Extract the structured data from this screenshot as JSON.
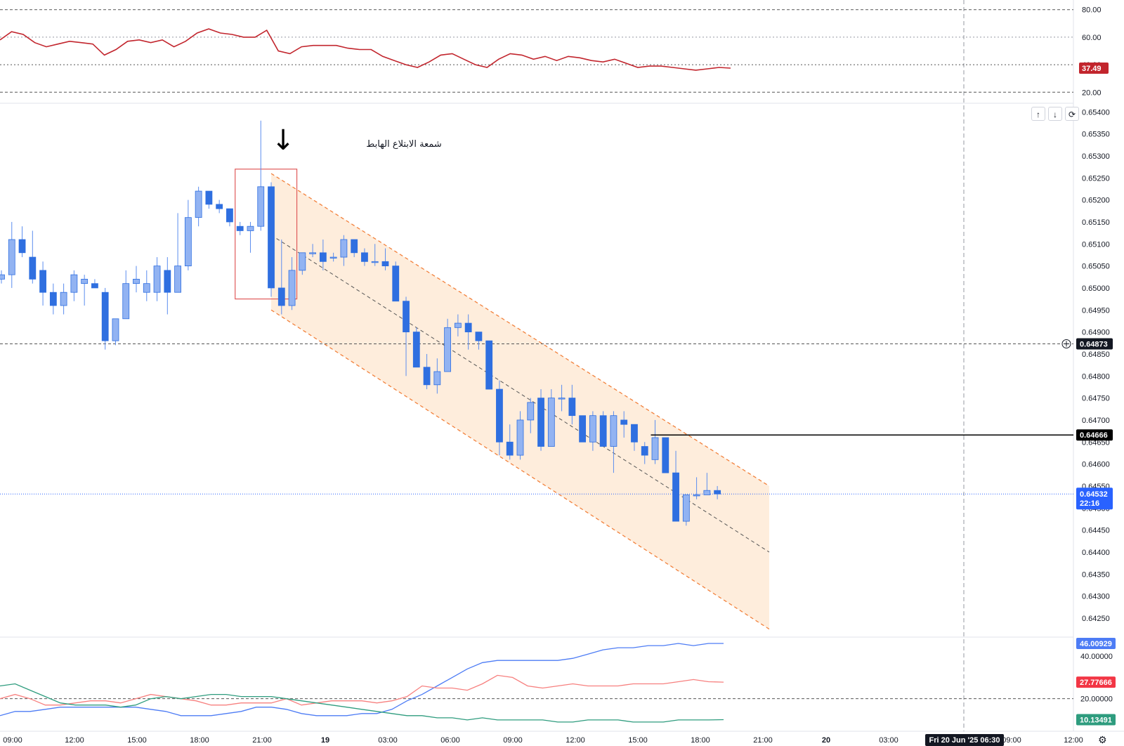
{
  "colors": {
    "bull": "#92b3f2",
    "bear": "#2f6fe0",
    "wick": "#5b8def",
    "rsi": "#c2252d",
    "di_plus": "#f23645",
    "di_plus_line": "#f7807f",
    "adx": "#4d7cf5",
    "di_minus": "#2e9c7e",
    "channel": "#f2813c",
    "channel_fill": "#fde7d0",
    "box": "#e05a5a",
    "hline": "#000000",
    "last_price": "#2962ff"
  },
  "annotation": {
    "text": "شمعة الابتلاع الهابط",
    "arrow": "↓"
  },
  "rsi_pane": {
    "ticks": [
      "80.00",
      "60.00",
      "40.00",
      "20.00"
    ],
    "levels": [
      80,
      60,
      40,
      20
    ],
    "value_label": "37.49"
  },
  "price_pane": {
    "ticks": [
      "0.65400",
      "0.65350",
      "0.65300",
      "0.65250",
      "0.65200",
      "0.65150",
      "0.65100",
      "0.65050",
      "0.65000",
      "0.64950",
      "0.64900",
      "0.64850",
      "0.64800",
      "0.64750",
      "0.64700",
      "0.64650",
      "0.64600",
      "0.64550",
      "0.64500",
      "0.64450",
      "0.64400",
      "0.64350",
      "0.64300",
      "0.64250"
    ],
    "dashed_level_label": "0.64873",
    "hline_label": "0.64666",
    "last_price_label": "0.64532",
    "countdown": "22:16"
  },
  "adx_pane": {
    "ticks": [
      "40.00000",
      "20.00000"
    ],
    "labels": {
      "adx": "46.00929",
      "di_plus": "27.77666",
      "di_minus": "10.13491"
    }
  },
  "time_axis": {
    "labels": [
      "09:00",
      "12:00",
      "15:00",
      "18:00",
      "21:00",
      "19",
      "03:00",
      "06:00",
      "09:00",
      "12:00",
      "15:00",
      "18:00",
      "21:00",
      "20",
      "03:00",
      "09:00",
      "12:00"
    ],
    "bold_indices": [
      5,
      13
    ],
    "crosshair_label": "Fri 20 Jun '25   06:30"
  },
  "toolbar": {
    "up": "↑",
    "down": "↓",
    "reset": "⟳"
  },
  "icons": {
    "settings": "gear-icon",
    "crosshair": "plus-circle-icon"
  },
  "chart_data": [
    {
      "type": "candlestick",
      "title": "",
      "series": [
        {
          "name": "",
          "ohlc": [
            [
              0.6502,
              0.6504,
              0.6501,
              0.6503
            ],
            [
              0.6503,
              0.6515,
              0.65,
              0.6511
            ],
            [
              0.6511,
              0.6514,
              0.6507,
              0.6508
            ],
            [
              0.6507,
              0.6513,
              0.6501,
              0.6502
            ],
            [
              0.6504,
              0.6506,
              0.6496,
              0.6499
            ],
            [
              0.6499,
              0.6501,
              0.6494,
              0.6496
            ],
            [
              0.6496,
              0.6501,
              0.6494,
              0.6499
            ],
            [
              0.6499,
              0.6504,
              0.6497,
              0.6503
            ],
            [
              0.6501,
              0.6503,
              0.6496,
              0.6502
            ],
            [
              0.6501,
              0.6502,
              0.65,
              0.65
            ],
            [
              0.6499,
              0.65,
              0.6486,
              0.6488
            ],
            [
              0.6488,
              0.6493,
              0.6487,
              0.6493
            ],
            [
              0.6493,
              0.6504,
              0.6493,
              0.6501
            ],
            [
              0.6501,
              0.6505,
              0.6499,
              0.6502
            ],
            [
              0.6499,
              0.6504,
              0.6497,
              0.6501
            ],
            [
              0.6499,
              0.6507,
              0.6497,
              0.6505
            ],
            [
              0.6504,
              0.6507,
              0.6494,
              0.6499
            ],
            [
              0.6499,
              0.6517,
              0.6499,
              0.6505
            ],
            [
              0.6505,
              0.652,
              0.6504,
              0.6516
            ],
            [
              0.6516,
              0.6523,
              0.6514,
              0.6522
            ],
            [
              0.6522,
              0.6522,
              0.6518,
              0.6519
            ],
            [
              0.6519,
              0.652,
              0.6517,
              0.6518
            ],
            [
              0.6518,
              0.6518,
              0.6514,
              0.6515
            ],
            [
              0.6514,
              0.6515,
              0.6512,
              0.6513
            ],
            [
              0.6513,
              0.6515,
              0.6508,
              0.6514
            ],
            [
              0.6514,
              0.6538,
              0.6513,
              0.6523
            ],
            [
              0.6523,
              0.6524,
              0.6498,
              0.65
            ],
            [
              0.65,
              0.6511,
              0.6494,
              0.6496
            ],
            [
              0.6496,
              0.6507,
              0.6495,
              0.6504
            ],
            [
              0.6504,
              0.6508,
              0.6503,
              0.6508
            ],
            [
              0.6508,
              0.651,
              0.6507,
              0.6508
            ],
            [
              0.6508,
              0.6511,
              0.6504,
              0.6506
            ],
            [
              0.6507,
              0.6508,
              0.6506,
              0.6507
            ],
            [
              0.6507,
              0.6512,
              0.6505,
              0.6511
            ],
            [
              0.6511,
              0.6511,
              0.6507,
              0.6508
            ],
            [
              0.6508,
              0.6509,
              0.6505,
              0.6506
            ],
            [
              0.6506,
              0.651,
              0.6505,
              0.6506
            ],
            [
              0.6506,
              0.6509,
              0.6504,
              0.6505
            ],
            [
              0.6505,
              0.6506,
              0.6497,
              0.6497
            ],
            [
              0.6497,
              0.6498,
              0.648,
              0.649
            ],
            [
              0.649,
              0.6491,
              0.6482,
              0.6482
            ],
            [
              0.6482,
              0.6485,
              0.6477,
              0.6478
            ],
            [
              0.6478,
              0.6484,
              0.6476,
              0.6481
            ],
            [
              0.6481,
              0.6493,
              0.6481,
              0.6491
            ],
            [
              0.6491,
              0.6494,
              0.6489,
              0.6492
            ],
            [
              0.6492,
              0.6494,
              0.6486,
              0.649
            ],
            [
              0.649,
              0.649,
              0.6486,
              0.6488
            ],
            [
              0.6488,
              0.6488,
              0.6477,
              0.6477
            ],
            [
              0.6477,
              0.6479,
              0.6462,
              0.6465
            ],
            [
              0.6465,
              0.6469,
              0.6461,
              0.6462
            ],
            [
              0.6462,
              0.6472,
              0.6461,
              0.647
            ],
            [
              0.647,
              0.6475,
              0.6467,
              0.6474
            ],
            [
              0.6475,
              0.6477,
              0.6463,
              0.6464
            ],
            [
              0.6464,
              0.6477,
              0.6464,
              0.6475
            ],
            [
              0.6475,
              0.6478,
              0.6472,
              0.6475
            ],
            [
              0.6475,
              0.6478,
              0.6469,
              0.6471
            ],
            [
              0.6471,
              0.6471,
              0.6465,
              0.6465
            ],
            [
              0.6465,
              0.6472,
              0.6463,
              0.6471
            ],
            [
              0.6471,
              0.6472,
              0.6464,
              0.6464
            ],
            [
              0.6464,
              0.6472,
              0.6458,
              0.6471
            ],
            [
              0.647,
              0.6472,
              0.6466,
              0.6469
            ],
            [
              0.6469,
              0.6469,
              0.6463,
              0.6465
            ],
            [
              0.6464,
              0.6465,
              0.646,
              0.6462
            ],
            [
              0.6461,
              0.647,
              0.646,
              0.6466
            ],
            [
              0.6466,
              0.6466,
              0.6458,
              0.6458
            ],
            [
              0.6458,
              0.6463,
              0.6447,
              0.6447
            ],
            [
              0.6447,
              0.6453,
              0.6446,
              0.6453
            ],
            [
              0.6453,
              0.6457,
              0.6452,
              0.6453
            ],
            [
              0.6453,
              0.6458,
              0.6453,
              0.6454
            ],
            [
              0.6454,
              0.6455,
              0.6452,
              0.64532
            ]
          ]
        }
      ],
      "y_range": [
        0.6421,
        0.6541
      ],
      "x_labels": [
        "09:00",
        "12:00",
        "15:00",
        "18:00",
        "21:00",
        "19",
        "03:00",
        "06:00",
        "09:00",
        "12:00",
        "15:00",
        "18:00",
        "21:00",
        "20",
        "03:00",
        "09:00",
        "12:00"
      ],
      "horizontal_lines": [
        0.64873,
        0.64666
      ],
      "last_price": 0.64532,
      "annotation": "شمعة الابتلاع الهابط",
      "highlight_box": {
        "bar_from": 23,
        "bar_to": 28,
        "price_top": 0.6527,
        "price_bottom": 0.64975
      },
      "channel": {
        "start_bar": 26,
        "end_bar": 74,
        "upper": [
          0.6526,
          0.6455
        ],
        "mid": [
          0.6512,
          0.644
        ],
        "lower": [
          0.6495,
          0.64225
        ]
      }
    },
    {
      "type": "line",
      "title": "",
      "ylim": [
        13,
        87
      ],
      "levels": [
        80,
        60,
        40,
        20
      ],
      "series": [
        {
          "name": "",
          "values": [
            58,
            64,
            62,
            56,
            53,
            55,
            57,
            56,
            55,
            47,
            51,
            57,
            58,
            56,
            58,
            53,
            57,
            63,
            66,
            63,
            62,
            60,
            60,
            65,
            50,
            48,
            53,
            54,
            54,
            54,
            52,
            51,
            51,
            46,
            43,
            40,
            38,
            42,
            47,
            48,
            44,
            40,
            38,
            44,
            48,
            47,
            44,
            46,
            43,
            46,
            45,
            43,
            42,
            44,
            41,
            38,
            39,
            39,
            38,
            37,
            36,
            37,
            38,
            37.49
          ]
        }
      ]
    },
    {
      "type": "line",
      "title": "",
      "ylim": [
        5,
        48
      ],
      "levels": [
        40,
        20
      ],
      "series": [
        {
          "name": "",
          "values": [
            12,
            14,
            14,
            15,
            16,
            16,
            16,
            16,
            16,
            16,
            15,
            14,
            12,
            12,
            12,
            13,
            14,
            16,
            16,
            15,
            13,
            12,
            12,
            12,
            13,
            13,
            15,
            19,
            22,
            26,
            30,
            34,
            37,
            38,
            38,
            38,
            38,
            38,
            39,
            41,
            43,
            44,
            44,
            45,
            45,
            46,
            45,
            46,
            46.00929
          ]
        },
        {
          "name": "",
          "values": [
            20,
            22,
            20,
            17,
            17,
            18,
            19,
            19,
            18,
            20,
            22,
            21,
            20,
            19,
            17,
            17,
            18,
            18,
            18,
            20,
            17,
            18,
            19,
            19,
            19,
            18,
            19,
            21,
            26,
            25,
            25,
            24,
            27,
            31,
            30,
            26,
            25,
            26,
            27,
            26,
            26,
            26,
            27,
            27,
            27,
            28,
            29,
            28,
            27.77666
          ]
        },
        {
          "name": "",
          "values": [
            26,
            27,
            24,
            21,
            18,
            17,
            17,
            17,
            16,
            17,
            20,
            21,
            20,
            21,
            22,
            22,
            21,
            21,
            21,
            20,
            19,
            18,
            17,
            16,
            15,
            14,
            13,
            12,
            12,
            11,
            11,
            10,
            11,
            10,
            10,
            10,
            10,
            9,
            9,
            10,
            10,
            10,
            9,
            9,
            9,
            10,
            10,
            10,
            10.13491
          ]
        }
      ]
    }
  ]
}
